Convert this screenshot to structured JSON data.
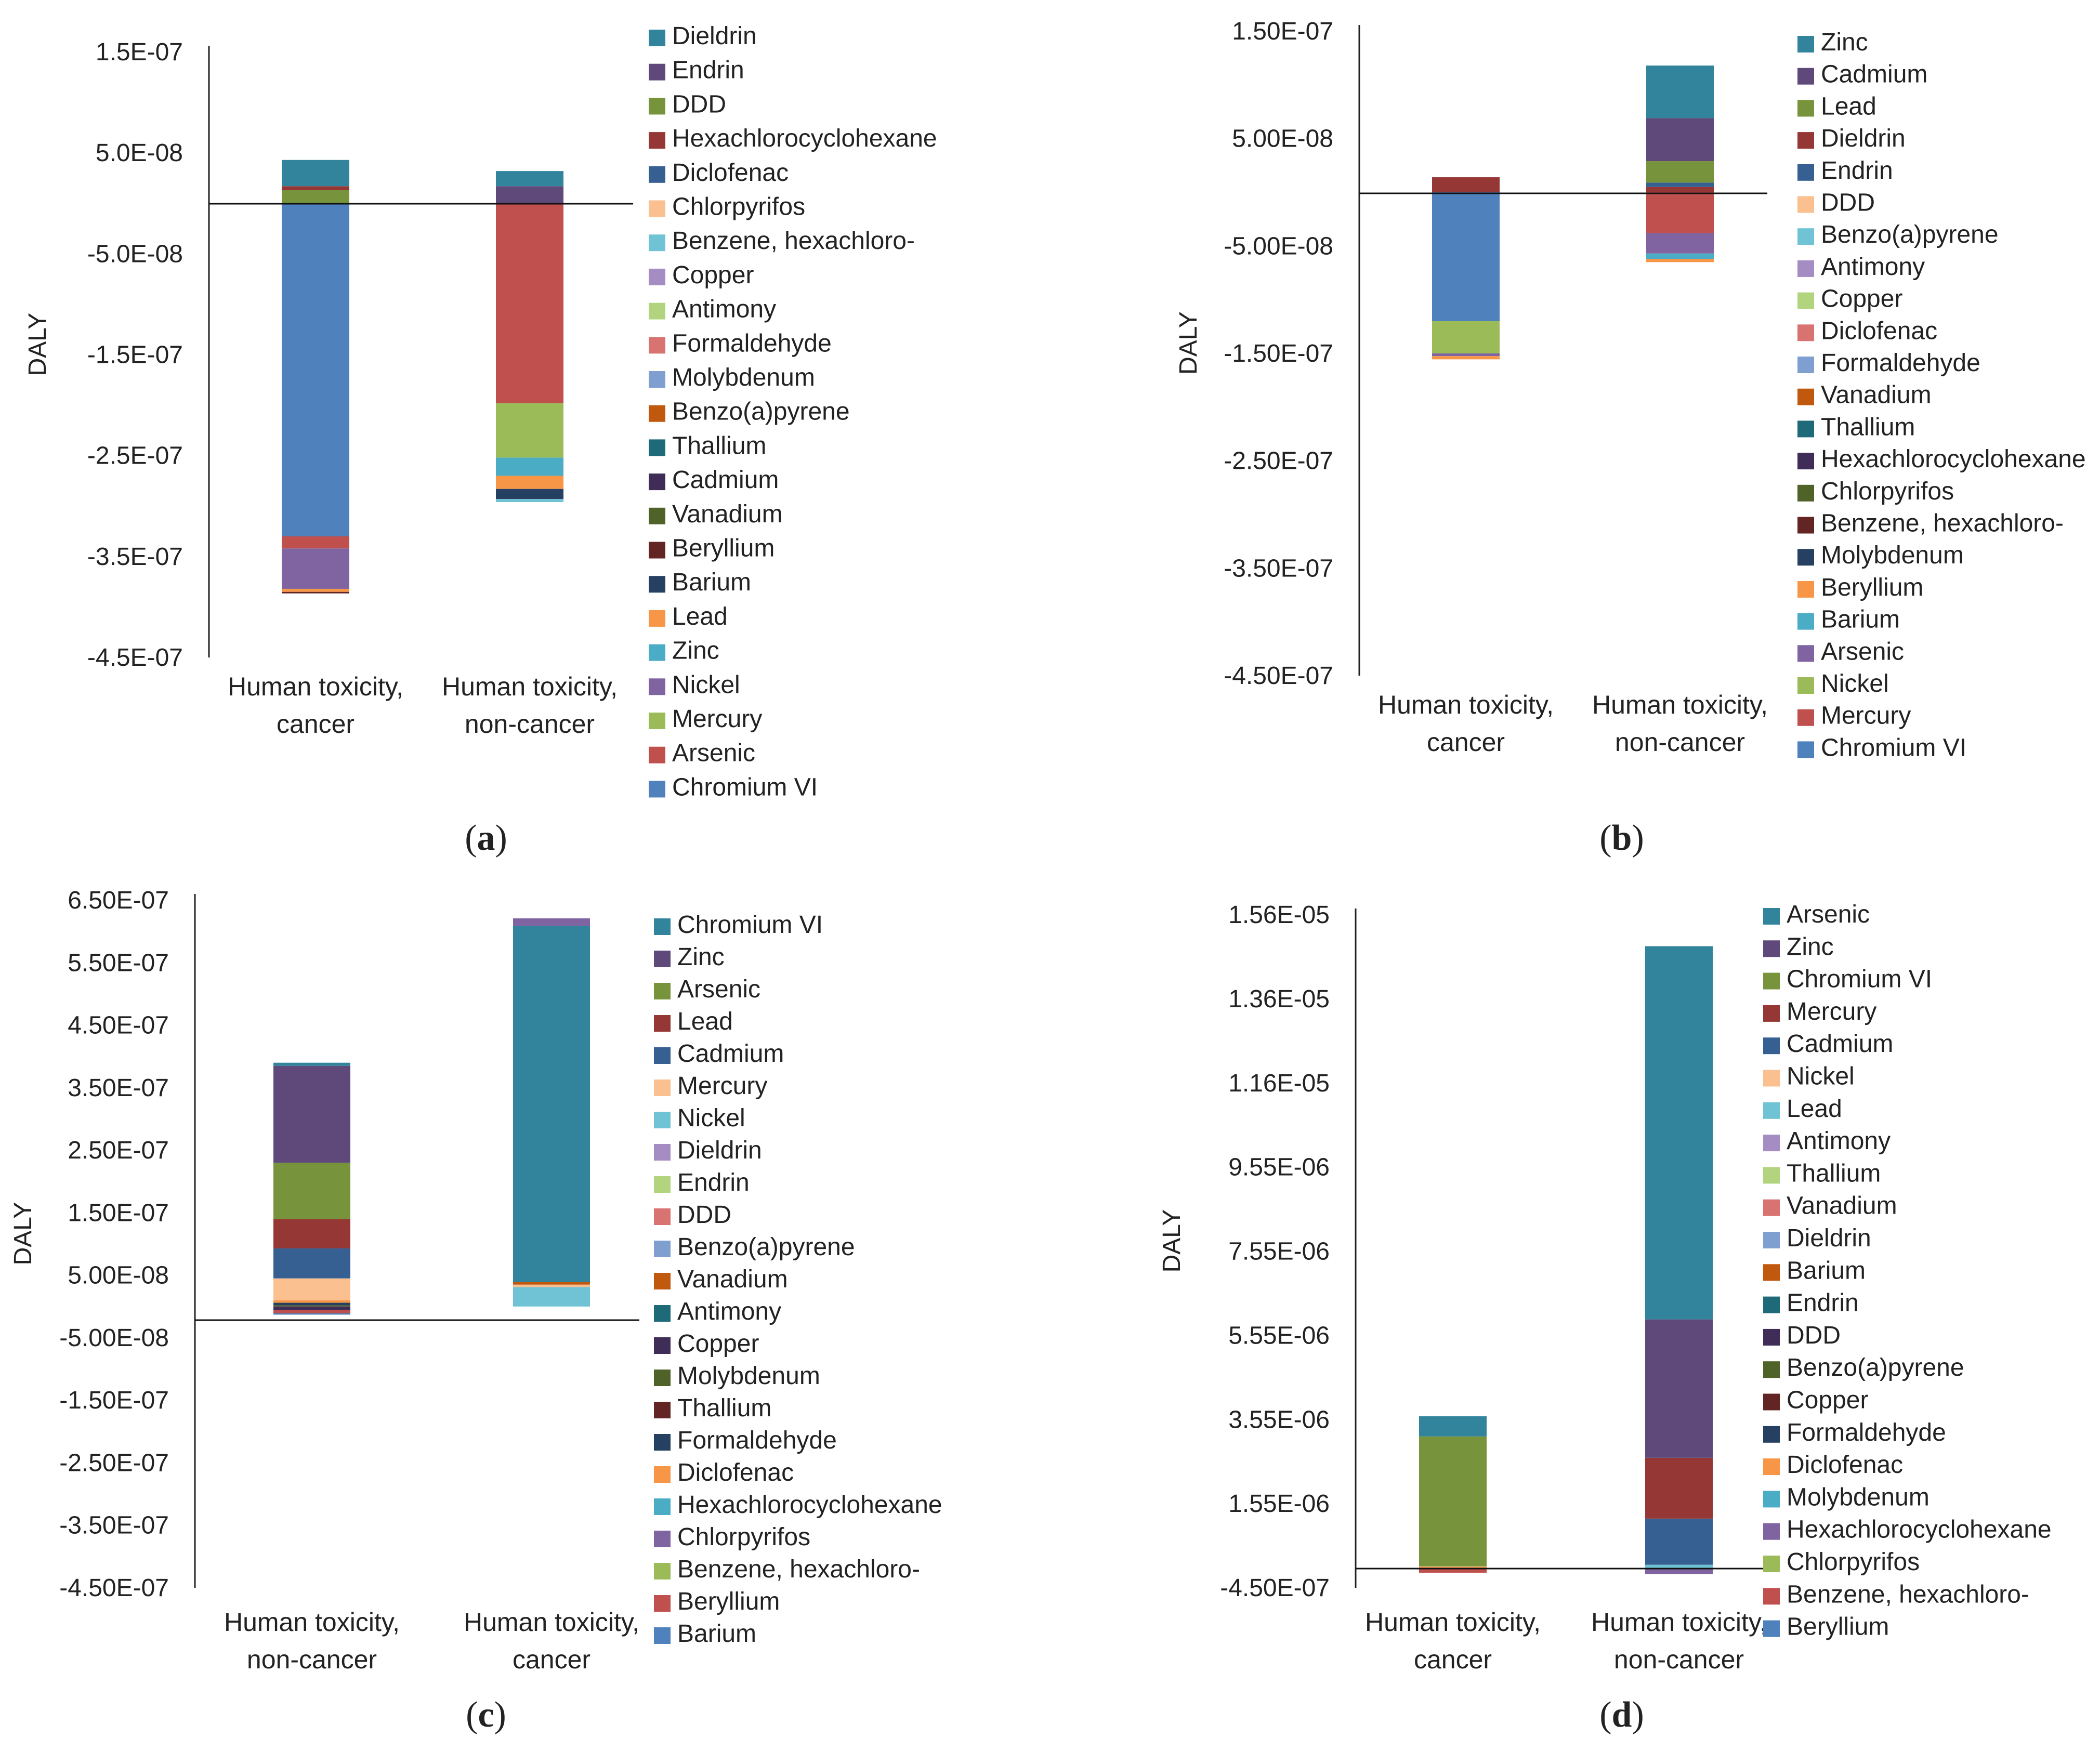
{
  "chart_data": [
    {
      "type": "bar",
      "stacked": true,
      "label": "(a)",
      "ylabel": "DALY",
      "yticks": [
        "1.5E-07",
        "5.0E-08",
        "-5.0E-08",
        "-1.5E-07",
        "-2.5E-07",
        "-3.5E-07",
        "-4.5E-07"
      ],
      "ylim": [
        -4.5e-07,
        1.5e-07
      ],
      "categories": [
        "Human toxicity,\ncancer",
        "Human toxicity,\nnon-cancer"
      ],
      "legend": [
        "Dieldrin",
        "Endrin",
        "DDD",
        "Hexachlorocyclohexane",
        "Diclofenac",
        "Chlorpyrifos",
        "Benzene, hexachloro-",
        "Copper",
        "Antimony",
        "Formaldehyde",
        "Molybdenum",
        "Benzo(a)pyrene",
        "Thallium",
        "Cadmium",
        "Vanadium",
        "Beryllium",
        "Barium",
        "Lead",
        "Zinc",
        "Nickel",
        "Mercury",
        "Arsenic",
        "Chromium VI"
      ],
      "colors": [
        "#31849B",
        "#5F497A",
        "#77933C",
        "#953735",
        "#376092",
        "#FAC090",
        "#6FC3D4",
        "#A58CC2",
        "#B3D47F",
        "#D97371",
        "#7F9FD0",
        "#C0580E",
        "#1F6A79",
        "#3F2D57",
        "#4F6228",
        "#632523",
        "#254061",
        "#F79646",
        "#4BACC6",
        "#8064A2",
        "#9BBB59",
        "#C0504D",
        "#4F81BD"
      ],
      "series": [
        {
          "name": "Chromium VI",
          "values": [
            -3.3e-07,
            0
          ]
        },
        {
          "name": "Arsenic",
          "values": [
            -1.2e-08,
            -1.98e-07
          ]
        },
        {
          "name": "Mercury",
          "values": [
            0,
            -5.4e-08
          ]
        },
        {
          "name": "Nickel",
          "values": [
            -4e-08,
            0
          ]
        },
        {
          "name": "Zinc",
          "values": [
            0,
            -1.8e-08
          ]
        },
        {
          "name": "Lead",
          "values": [
            -3e-09,
            -1.3e-08
          ]
        },
        {
          "name": "Barium",
          "values": [
            0,
            -1e-08
          ]
        },
        {
          "name": "Beryllium",
          "values": [
            -1.5e-09,
            0
          ]
        },
        {
          "name": "Benzene, hexachloro-",
          "values": [
            0,
            -3e-09
          ]
        },
        {
          "name": "DDD",
          "values": [
            1.3e-08,
            0
          ]
        },
        {
          "name": "Hexachlorocyclohexane",
          "values": [
            4e-09,
            0
          ]
        },
        {
          "name": "Endrin",
          "values": [
            0,
            1.7e-08
          ]
        },
        {
          "name": "Dieldrin",
          "values": [
            2.6e-08,
            1.5e-08
          ]
        }
      ]
    },
    {
      "type": "bar",
      "stacked": true,
      "label": "(b)",
      "ylabel": "DALY",
      "yticks": [
        "1.50E-07",
        "5.00E-08",
        "-5.00E-08",
        "-1.50E-07",
        "-2.50E-07",
        "-3.50E-07",
        "-4.50E-07"
      ],
      "ylim": [
        -4.5e-07,
        1.5e-07
      ],
      "categories": [
        "Human toxicity,\ncancer",
        "Human toxicity,\nnon-cancer"
      ],
      "legend": [
        "Zinc",
        "Cadmium",
        "Lead",
        "Dieldrin",
        "Endrin",
        "DDD",
        "Benzo(a)pyrene",
        "Antimony",
        "Copper",
        "Diclofenac",
        "Formaldehyde",
        "Vanadium",
        "Thallium",
        "Hexachlorocyclohexane",
        "Chlorpyrifos",
        "Benzene, hexachloro-",
        "Molybdenum",
        "Beryllium",
        "Barium",
        "Arsenic",
        "Nickel",
        "Mercury",
        "Chromium VI"
      ],
      "colors": [
        "#31849B",
        "#5F497A",
        "#77933C",
        "#953735",
        "#376092",
        "#FAC090",
        "#6FC3D4",
        "#A58CC2",
        "#B3D47F",
        "#D97371",
        "#7F9FD0",
        "#C0580E",
        "#1F6A79",
        "#3F2D57",
        "#4F6228",
        "#632523",
        "#254061",
        "#F79646",
        "#4BACC6",
        "#8064A2",
        "#9BBB59",
        "#C0504D",
        "#4F81BD"
      ],
      "series": [
        {
          "name": "Chromium VI",
          "values": [
            -1.2e-07,
            0
          ]
        },
        {
          "name": "Nickel",
          "values": [
            -3e-08,
            0
          ]
        },
        {
          "name": "Arsenic",
          "values": [
            -2.5e-09,
            0
          ]
        },
        {
          "name": "Mercury",
          "values": [
            0,
            -3.8e-08
          ]
        },
        {
          "name": "Arsenic ",
          "values": [
            0,
            -1.9e-08
          ]
        },
        {
          "name": "Barium",
          "values": [
            0,
            -5e-09
          ]
        },
        {
          "name": "Beryllium",
          "values": [
            -3e-09,
            -3e-09
          ]
        },
        {
          "name": "Dieldrin",
          "values": [
            1.4e-08,
            5e-09
          ]
        },
        {
          "name": "Endrin",
          "values": [
            0,
            4e-09
          ]
        },
        {
          "name": "Lead",
          "values": [
            0,
            2e-08
          ]
        },
        {
          "name": "Cadmium",
          "values": [
            0,
            4e-08
          ]
        },
        {
          "name": "Zinc",
          "values": [
            0,
            4.9e-08
          ]
        }
      ]
    },
    {
      "type": "bar",
      "stacked": true,
      "label": "(c)",
      "ylabel": "DALY",
      "yticks": [
        "6.50E-07",
        "5.50E-07",
        "4.50E-07",
        "3.50E-07",
        "2.50E-07",
        "1.50E-07",
        "5.00E-08",
        "-5.00E-08",
        "-1.50E-07",
        "-2.50E-07",
        "-3.50E-07",
        "-4.50E-07"
      ],
      "ylim": [
        -4.5e-07,
        6.5e-07
      ],
      "categories": [
        "Human toxicity,\nnon-cancer",
        "Human toxicity,\ncancer"
      ],
      "legend": [
        "Chromium VI",
        "Zinc",
        "Arsenic",
        "Lead",
        "Cadmium",
        "Mercury",
        "Nickel",
        "Dieldrin",
        "Endrin",
        "DDD",
        "Benzo(a)pyrene",
        "Vanadium",
        "Antimony",
        "Copper",
        "Molybdenum",
        "Thallium",
        "Formaldehyde",
        "Diclofenac",
        "Hexachlorocyclohexane",
        "Chlorpyrifos",
        "Benzene, hexachloro-",
        "Beryllium",
        "Barium"
      ],
      "colors": [
        "#31849B",
        "#5F497A",
        "#77933C",
        "#953735",
        "#376092",
        "#FAC090",
        "#6FC3D4",
        "#A58CC2",
        "#B3D47F",
        "#D97371",
        "#7F9FD0",
        "#C0580E",
        "#1F6A79",
        "#3F2D57",
        "#4F6228",
        "#632523",
        "#254061",
        "#F79646",
        "#4BACC6",
        "#8064A2",
        "#9BBB59",
        "#C0504D",
        "#4F81BD"
      ],
      "series": [
        {
          "name": "Molybdenum",
          "values": [
            2e-09,
            0
          ]
        },
        {
          "name": "Formaldehyde",
          "values": [
            4e-09,
            0
          ]
        },
        {
          "name": "Diclofenac",
          "values": [
            4e-09,
            0
          ]
        },
        {
          "name": "Nickel",
          "values": [
            0,
            3.1e-08
          ]
        },
        {
          "name": "Mercury",
          "values": [
            3.5e-08,
            4e-09
          ]
        },
        {
          "name": "Vanadium",
          "values": [
            0,
            4e-09
          ]
        },
        {
          "name": "Cadmium",
          "values": [
            4.8e-08,
            0
          ]
        },
        {
          "name": "Lead",
          "values": [
            4.7e-08,
            0
          ]
        },
        {
          "name": "Arsenic",
          "values": [
            9e-08,
            0
          ]
        },
        {
          "name": "Zinc",
          "values": [
            1.55e-07,
            0
          ]
        },
        {
          "name": "Chromium VI",
          "values": [
            5e-09,
            5.7e-07
          ]
        },
        {
          "name": "Copper",
          "values": [
            -6e-09,
            0
          ]
        },
        {
          "name": "Beryllium",
          "values": [
            -5e-09,
            0
          ]
        },
        {
          "name": "Chlorpyrifos",
          "values": [
            0,
            1.2e-08
          ]
        },
        {
          "name": "Barium",
          "values": [
            -2e-09,
            0
          ]
        }
      ]
    },
    {
      "type": "bar",
      "stacked": true,
      "label": "(d)",
      "ylabel": "DALY",
      "yticks": [
        "1.56E-05",
        "1.36E-05",
        "1.16E-05",
        "9.55E-06",
        "7.55E-06",
        "5.55E-06",
        "3.55E-06",
        "1.55E-06",
        "-4.50E-07"
      ],
      "ylim": [
        -4.5e-07,
        1.56e-05
      ],
      "categories": [
        "Human toxicity,\ncancer",
        "Human toxicity,\nnon-cancer"
      ],
      "legend": [
        "Arsenic",
        "Zinc",
        "Chromium VI",
        "Mercury",
        "Cadmium",
        "Nickel",
        "Lead",
        "Antimony",
        "Thallium",
        "Vanadium",
        "Dieldrin",
        "Barium",
        "Endrin",
        "DDD",
        "Benzo(a)pyrene",
        "Copper",
        "Formaldehyde",
        "Diclofenac",
        "Molybdenum",
        "Hexachlorocyclohexane",
        "Chlorpyrifos",
        "Benzene, hexachloro-",
        "Beryllium"
      ],
      "colors": [
        "#31849B",
        "#5F497A",
        "#77933C",
        "#953735",
        "#376092",
        "#FAC090",
        "#6FC3D4",
        "#A58CC2",
        "#B3D47F",
        "#D97371",
        "#7F9FD0",
        "#C0580E",
        "#1F6A79",
        "#3F2D57",
        "#4F6228",
        "#632523",
        "#254061",
        "#F79646",
        "#4BACC6",
        "#8064A2",
        "#9BBB59",
        "#C0504D",
        "#4F81BD"
      ],
      "series": [
        {
          "name": "Diclofenac",
          "values": [
            5e-08,
            0
          ]
        },
        {
          "name": "Nickel",
          "values": [
            1e-08,
            0
          ]
        },
        {
          "name": "Lead",
          "values": [
            0,
            1e-07
          ]
        },
        {
          "name": "Cadmium",
          "values": [
            0,
            1.1e-06
          ]
        },
        {
          "name": "Mercury",
          "values": [
            0,
            1.45e-06
          ]
        },
        {
          "name": "Chromium VI",
          "values": [
            3.1e-06,
            0
          ]
        },
        {
          "name": "Zinc",
          "values": [
            0,
            3.3e-06
          ]
        },
        {
          "name": "Arsenic",
          "values": [
            4.8e-07,
            8.9e-06
          ]
        },
        {
          "name": "Benzene, hexachloro-",
          "values": [
            -9e-08,
            0
          ]
        },
        {
          "name": "Hexachlorocyclohexane",
          "values": [
            0,
            -1.2e-07
          ]
        }
      ]
    }
  ]
}
